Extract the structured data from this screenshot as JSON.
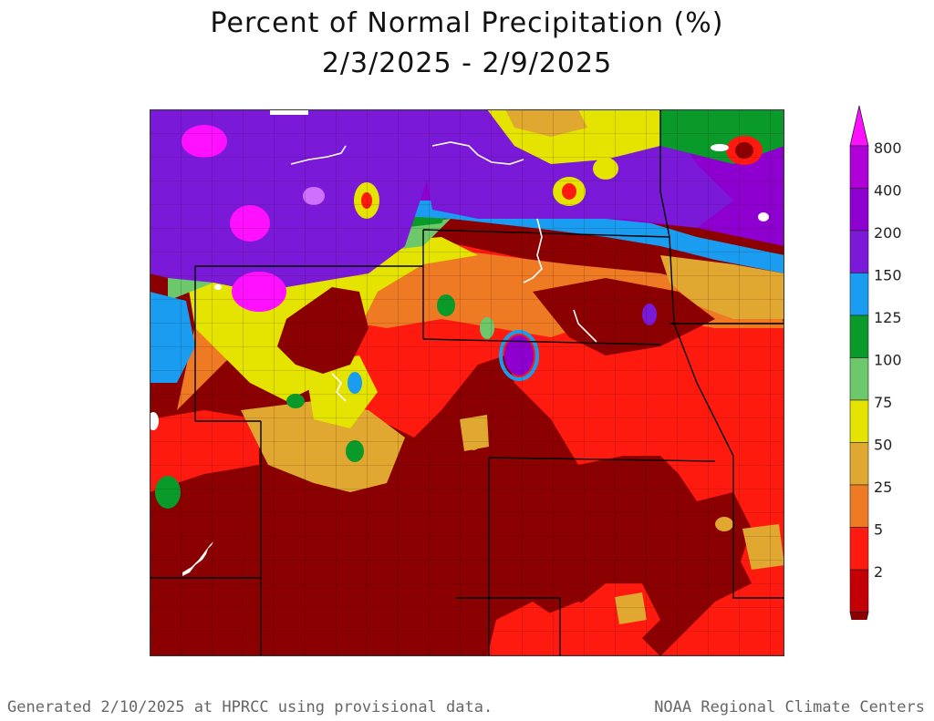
{
  "title": {
    "line1": "Percent of Normal Precipitation (%)",
    "line2": "2/3/2025 - 2/9/2025"
  },
  "legend": {
    "bins": [
      {
        "label": "800",
        "color": "#b000d8"
      },
      {
        "label": "400",
        "color": "#8e00d0"
      },
      {
        "label": "200",
        "color": "#7a1ad8"
      },
      {
        "label": "150",
        "color": "#1a9cf0"
      },
      {
        "label": "125",
        "color": "#0a9a2a"
      },
      {
        "label": "100",
        "color": "#6cc86a"
      },
      {
        "label": "75",
        "color": "#e4e400"
      },
      {
        "label": "50",
        "color": "#e0a830"
      },
      {
        "label": "25",
        "color": "#ef7a24"
      },
      {
        "label": "5",
        "color": "#ff1a10"
      },
      {
        "label": "2",
        "color": "#c40006"
      }
    ],
    "top_color": "#ff10ff",
    "bottom_color": "#8b0000"
  },
  "footer": {
    "left": "Generated 2/10/2025 at HPRCC using provisional data.",
    "right": "NOAA Regional Climate Centers"
  },
  "colors": {
    "darkred": "#8b0000",
    "red": "#ff1a10",
    "orange": "#ef7a24",
    "tan": "#e0a830",
    "yellow": "#e4e400",
    "lightgreen": "#6cc86a",
    "green": "#0a9a2a",
    "blue": "#1a9cf0",
    "purple": "#8e00d0",
    "magenta": "#ff10ff"
  }
}
